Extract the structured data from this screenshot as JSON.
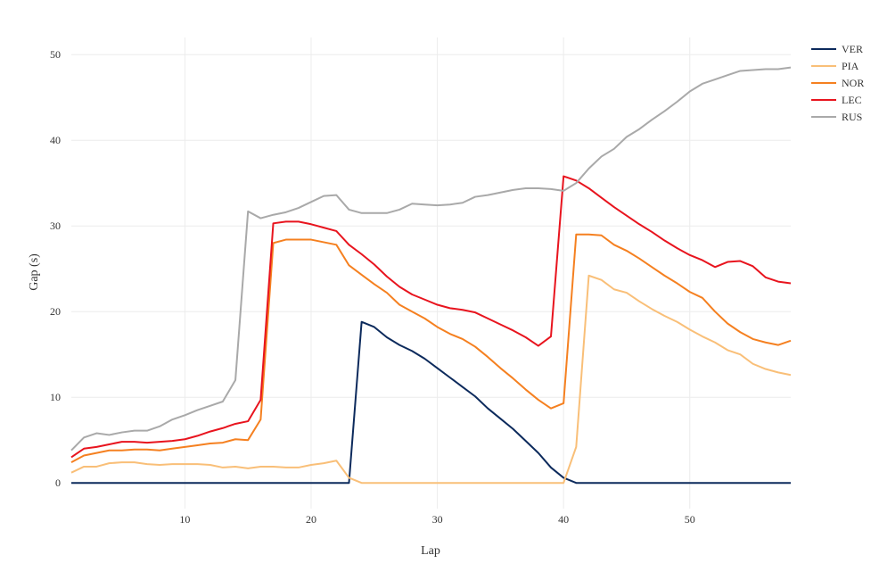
{
  "chart_data": {
    "type": "line",
    "title": "",
    "xlabel": "Lap",
    "ylabel": "Gap (s)",
    "xlim": [
      1,
      58
    ],
    "ylim": [
      -3,
      52
    ],
    "xticks": [
      10,
      20,
      30,
      40,
      50
    ],
    "yticks": [
      0,
      10,
      20,
      30,
      40,
      50
    ],
    "grid": true,
    "legend": "top-right",
    "x": [
      1,
      2,
      3,
      4,
      5,
      6,
      7,
      8,
      9,
      10,
      11,
      12,
      13,
      14,
      15,
      16,
      17,
      18,
      19,
      20,
      21,
      22,
      23,
      24,
      25,
      26,
      27,
      28,
      29,
      30,
      31,
      32,
      33,
      34,
      35,
      36,
      37,
      38,
      39,
      40,
      41,
      42,
      43,
      44,
      45,
      46,
      47,
      48,
      49,
      50,
      51,
      52,
      53,
      54,
      55,
      56,
      57,
      58
    ],
    "series": [
      {
        "name": "VER",
        "color": "#0c2a5c",
        "values": [
          0,
          0,
          0,
          0,
          0,
          0,
          0,
          0,
          0,
          0,
          0,
          0,
          0,
          0,
          0,
          0,
          0,
          0,
          0,
          0,
          0,
          0,
          0,
          18.8,
          18.2,
          17,
          16.1,
          15.4,
          14.5,
          13.4,
          12.3,
          11.2,
          10.1,
          8.7,
          7.5,
          6.3,
          4.9,
          3.5,
          1.8,
          0.6,
          0,
          0,
          0,
          0,
          0,
          0,
          0,
          0,
          0,
          0,
          0,
          0,
          0,
          0,
          0,
          0,
          0,
          0
        ]
      },
      {
        "name": "PIA",
        "color": "#f9bf78",
        "values": [
          1.2,
          1.9,
          1.9,
          2.3,
          2.4,
          2.4,
          2.2,
          2.1,
          2.2,
          2.2,
          2.2,
          2.1,
          1.8,
          1.9,
          1.7,
          1.9,
          1.9,
          1.8,
          1.8,
          2.1,
          2.3,
          2.6,
          0.6,
          0,
          0,
          0,
          0,
          0,
          0,
          0,
          0,
          0,
          0,
          0,
          0,
          0,
          0,
          0,
          0,
          0,
          4.2,
          24.2,
          23.7,
          22.6,
          22.2,
          21.2,
          20.3,
          19.5,
          18.8,
          17.9,
          17.1,
          16.4,
          15.5,
          15,
          13.9,
          13.3,
          12.9,
          12.6
        ]
      },
      {
        "name": "NOR",
        "color": "#f58020",
        "values": [
          2.4,
          3.2,
          3.5,
          3.8,
          3.8,
          3.9,
          3.9,
          3.8,
          4,
          4.2,
          4.4,
          4.6,
          4.7,
          5.1,
          5,
          7.4,
          28,
          28.4,
          28.4,
          28.4,
          28.1,
          27.8,
          25.4,
          24.3,
          23.2,
          22.2,
          20.8,
          20,
          19.2,
          18.2,
          17.4,
          16.8,
          15.9,
          14.7,
          13.4,
          12.2,
          10.9,
          9.7,
          8.7,
          9.3,
          29,
          29,
          28.9,
          27.8,
          27.1,
          26.2,
          25.2,
          24.2,
          23.3,
          22.3,
          21.6,
          20,
          18.6,
          17.6,
          16.8,
          16.4,
          16.1,
          16.6
        ]
      },
      {
        "name": "LEC",
        "color": "#e8141e",
        "values": [
          3,
          4,
          4.2,
          4.5,
          4.8,
          4.8,
          4.7,
          4.8,
          4.9,
          5.1,
          5.5,
          6,
          6.4,
          6.9,
          7.2,
          9.7,
          30.3,
          30.5,
          30.5,
          30.2,
          29.8,
          29.4,
          27.8,
          26.7,
          25.5,
          24.1,
          22.9,
          22,
          21.4,
          20.8,
          20.4,
          20.2,
          19.9,
          19.2,
          18.5,
          17.8,
          17,
          16,
          17.1,
          35.8,
          35.3,
          34.4,
          33.3,
          32.2,
          31.2,
          30.2,
          29.3,
          28.3,
          27.4,
          26.6,
          26,
          25.2,
          25.8,
          25.9,
          25.3,
          24,
          23.5,
          23.3
        ]
      },
      {
        "name": "RUS",
        "color": "#a9a9a9",
        "values": [
          3.8,
          5.3,
          5.8,
          5.6,
          5.9,
          6.1,
          6.1,
          6.6,
          7.4,
          7.9,
          8.5,
          9,
          9.5,
          12,
          31.7,
          30.9,
          31.3,
          31.6,
          32.1,
          32.8,
          33.5,
          33.6,
          31.9,
          31.5,
          31.5,
          31.5,
          31.9,
          32.6,
          32.5,
          32.4,
          32.5,
          32.7,
          33.4,
          33.6,
          33.9,
          34.2,
          34.4,
          34.4,
          34.3,
          34.1,
          35,
          36.7,
          38.1,
          39,
          40.4,
          41.3,
          42.4,
          43.4,
          44.5,
          45.7,
          46.6,
          47.1,
          47.6,
          48.1,
          48.2,
          48.3,
          48.3,
          48.5
        ]
      }
    ]
  }
}
